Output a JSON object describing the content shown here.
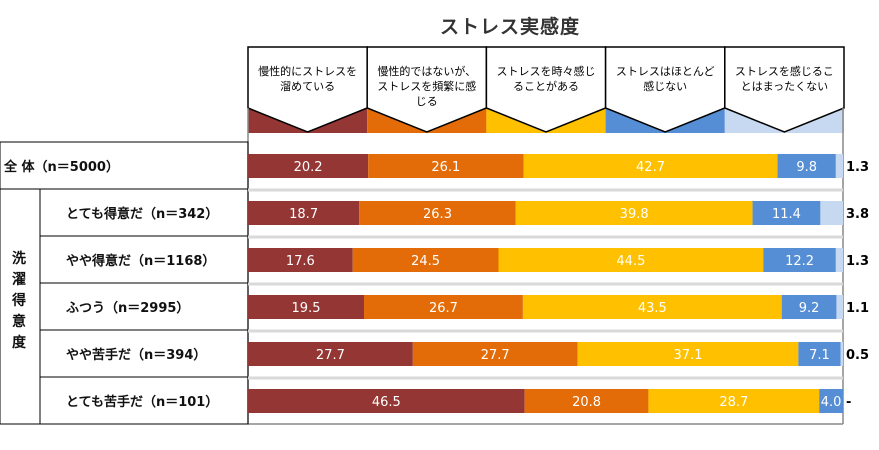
{
  "chart_data": {
    "type": "bar",
    "stacked": true,
    "orientation": "horizontal",
    "title": "ストレス実感度",
    "group_label": "洗濯得意度",
    "categories": [
      "全 体（n＝5000）",
      "とても得意だ（n＝342）",
      "やや得意だ（n＝1168）",
      "ふつう（n＝2995）",
      "やや苦手だ（n＝394）",
      "とても苦手だ（n＝101）"
    ],
    "series": [
      {
        "name": "慢性的にストレスを溜めている",
        "color": "#943634",
        "values": [
          20.2,
          18.7,
          17.6,
          19.5,
          27.7,
          46.5
        ]
      },
      {
        "name": "慢性的ではないが、ストレスを頻繁に感じる",
        "color": "#E36C09",
        "values": [
          26.1,
          26.3,
          24.5,
          26.7,
          27.7,
          20.8
        ]
      },
      {
        "name": "ストレスを時々感じることがある",
        "color": "#FFC000",
        "values": [
          42.7,
          39.8,
          44.5,
          43.5,
          37.1,
          28.7
        ]
      },
      {
        "name": "ストレスはほとんど感じない",
        "color": "#558ED5",
        "values": [
          9.8,
          11.4,
          12.2,
          9.2,
          7.1,
          4.0
        ]
      },
      {
        "name": "ストレスを感じることはまったくない",
        "color": "#C6D9F1",
        "values": [
          1.3,
          3.8,
          1.3,
          1.1,
          0.5,
          0
        ]
      }
    ],
    "zero_label": "-",
    "xlim": [
      0,
      100
    ]
  }
}
